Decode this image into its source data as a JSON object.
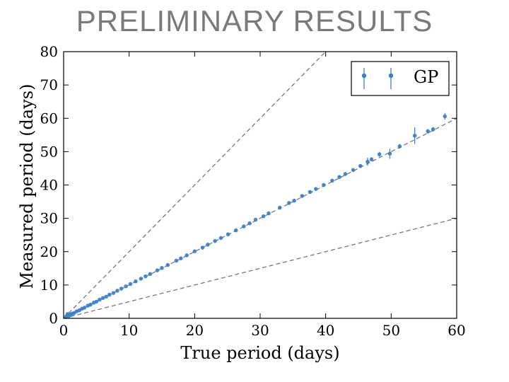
{
  "slide_title": "PRELIMINARY RESULTS",
  "colors": {
    "series": "#3a7fc4",
    "reference_line": "#777777",
    "title": "#7a7a7a"
  },
  "chart_data": {
    "type": "scatter",
    "title": "",
    "xlabel": "True period (days)",
    "ylabel": "Measured period (days)",
    "xlim": [
      0,
      60
    ],
    "ylim": [
      0,
      80
    ],
    "xticks": [
      0,
      10,
      20,
      30,
      40,
      50,
      60
    ],
    "yticks": [
      0,
      10,
      20,
      30,
      40,
      50,
      60,
      70,
      80
    ],
    "xtick_labels": [
      "0",
      "10",
      "20",
      "30",
      "40",
      "50",
      "60"
    ],
    "ytick_labels": [
      "0",
      "10",
      "20",
      "30",
      "40",
      "50",
      "60",
      "70",
      "80"
    ],
    "grid": false,
    "legend": {
      "position": "top-right",
      "entries": [
        "GP"
      ]
    },
    "reference_lines": [
      {
        "slope": 2,
        "style": "dashed"
      },
      {
        "slope": 1,
        "style": "dashed"
      },
      {
        "slope": 0.5,
        "style": "dashed"
      }
    ],
    "series": [
      {
        "name": "GP",
        "marker": "circle-with-errorbars",
        "points": [
          {
            "x": 0.4,
            "y": 0.6,
            "err": 0.2
          },
          {
            "x": 0.6,
            "y": 1.3,
            "err": 0.3
          },
          {
            "x": 0.8,
            "y": 0.7,
            "err": 0.2
          },
          {
            "x": 1.0,
            "y": 1.1,
            "err": 0.2
          },
          {
            "x": 1.3,
            "y": 1.4,
            "err": 0.2
          },
          {
            "x": 1.6,
            "y": 1.6,
            "err": 0.2
          },
          {
            "x": 2.0,
            "y": 2.1,
            "err": 0.2
          },
          {
            "x": 2.4,
            "y": 2.4,
            "err": 0.2
          },
          {
            "x": 2.8,
            "y": 2.9,
            "err": 0.2
          },
          {
            "x": 3.2,
            "y": 3.2,
            "err": 0.2
          },
          {
            "x": 3.7,
            "y": 3.8,
            "err": 0.2
          },
          {
            "x": 4.1,
            "y": 4.1,
            "err": 0.2
          },
          {
            "x": 4.6,
            "y": 4.7,
            "err": 0.2
          },
          {
            "x": 5.0,
            "y": 5.0,
            "err": 0.2
          },
          {
            "x": 5.5,
            "y": 5.6,
            "err": 0.2
          },
          {
            "x": 6.0,
            "y": 6.1,
            "err": 0.2
          },
          {
            "x": 6.5,
            "y": 6.5,
            "err": 0.2
          },
          {
            "x": 7.0,
            "y": 7.1,
            "err": 0.2
          },
          {
            "x": 7.6,
            "y": 7.6,
            "err": 0.2
          },
          {
            "x": 8.2,
            "y": 8.3,
            "err": 0.2
          },
          {
            "x": 8.8,
            "y": 8.9,
            "err": 0.2
          },
          {
            "x": 9.5,
            "y": 9.6,
            "err": 0.2
          },
          {
            "x": 10.2,
            "y": 10.3,
            "err": 0.2
          },
          {
            "x": 11.0,
            "y": 11.1,
            "err": 0.2
          },
          {
            "x": 11.8,
            "y": 11.9,
            "err": 0.2
          },
          {
            "x": 12.5,
            "y": 12.6,
            "err": 0.2
          },
          {
            "x": 13.2,
            "y": 13.3,
            "err": 0.2
          },
          {
            "x": 14.3,
            "y": 14.4,
            "err": 0.2
          },
          {
            "x": 15.0,
            "y": 15.1,
            "err": 0.2
          },
          {
            "x": 15.9,
            "y": 16.0,
            "err": 0.2
          },
          {
            "x": 17.2,
            "y": 17.3,
            "err": 0.2
          },
          {
            "x": 17.9,
            "y": 18.0,
            "err": 0.2
          },
          {
            "x": 18.8,
            "y": 18.9,
            "err": 0.2
          },
          {
            "x": 20.0,
            "y": 20.1,
            "err": 0.3
          },
          {
            "x": 21.2,
            "y": 21.2,
            "err": 0.3
          },
          {
            "x": 22.0,
            "y": 22.1,
            "err": 0.3
          },
          {
            "x": 23.1,
            "y": 23.2,
            "err": 0.3
          },
          {
            "x": 24.0,
            "y": 24.1,
            "err": 0.3
          },
          {
            "x": 25.1,
            "y": 25.2,
            "err": 0.3
          },
          {
            "x": 26.3,
            "y": 26.4,
            "err": 0.3
          },
          {
            "x": 27.5,
            "y": 27.6,
            "err": 0.3
          },
          {
            "x": 28.4,
            "y": 28.5,
            "err": 0.3
          },
          {
            "x": 29.3,
            "y": 29.6,
            "err": 0.3
          },
          {
            "x": 30.5,
            "y": 30.6,
            "err": 0.3
          },
          {
            "x": 31.3,
            "y": 31.5,
            "err": 0.3
          },
          {
            "x": 33.0,
            "y": 33.2,
            "err": 0.4
          },
          {
            "x": 34.4,
            "y": 34.6,
            "err": 0.4
          },
          {
            "x": 35.2,
            "y": 35.3,
            "err": 0.4
          },
          {
            "x": 36.4,
            "y": 36.7,
            "err": 0.4
          },
          {
            "x": 37.6,
            "y": 37.9,
            "err": 0.4
          },
          {
            "x": 38.5,
            "y": 38.8,
            "err": 0.4
          },
          {
            "x": 39.7,
            "y": 40.0,
            "err": 0.4
          },
          {
            "x": 41.0,
            "y": 41.3,
            "err": 0.5
          },
          {
            "x": 42.1,
            "y": 42.4,
            "err": 0.5
          },
          {
            "x": 43.0,
            "y": 43.3,
            "err": 0.5
          },
          {
            "x": 44.2,
            "y": 44.5,
            "err": 0.5
          },
          {
            "x": 45.3,
            "y": 45.7,
            "err": 0.6
          },
          {
            "x": 46.4,
            "y": 47.0,
            "err": 1.2
          },
          {
            "x": 47.0,
            "y": 47.7,
            "err": 0.6
          },
          {
            "x": 48.2,
            "y": 49.2,
            "err": 0.7
          },
          {
            "x": 49.8,
            "y": 49.4,
            "err": 1.5
          },
          {
            "x": 51.3,
            "y": 51.6,
            "err": 0.7
          },
          {
            "x": 53.6,
            "y": 54.8,
            "err": 2.5
          },
          {
            "x": 55.6,
            "y": 56.1,
            "err": 0.7
          },
          {
            "x": 56.4,
            "y": 56.7,
            "err": 0.7
          },
          {
            "x": 58.2,
            "y": 60.6,
            "err": 1.0
          }
        ]
      }
    ]
  }
}
